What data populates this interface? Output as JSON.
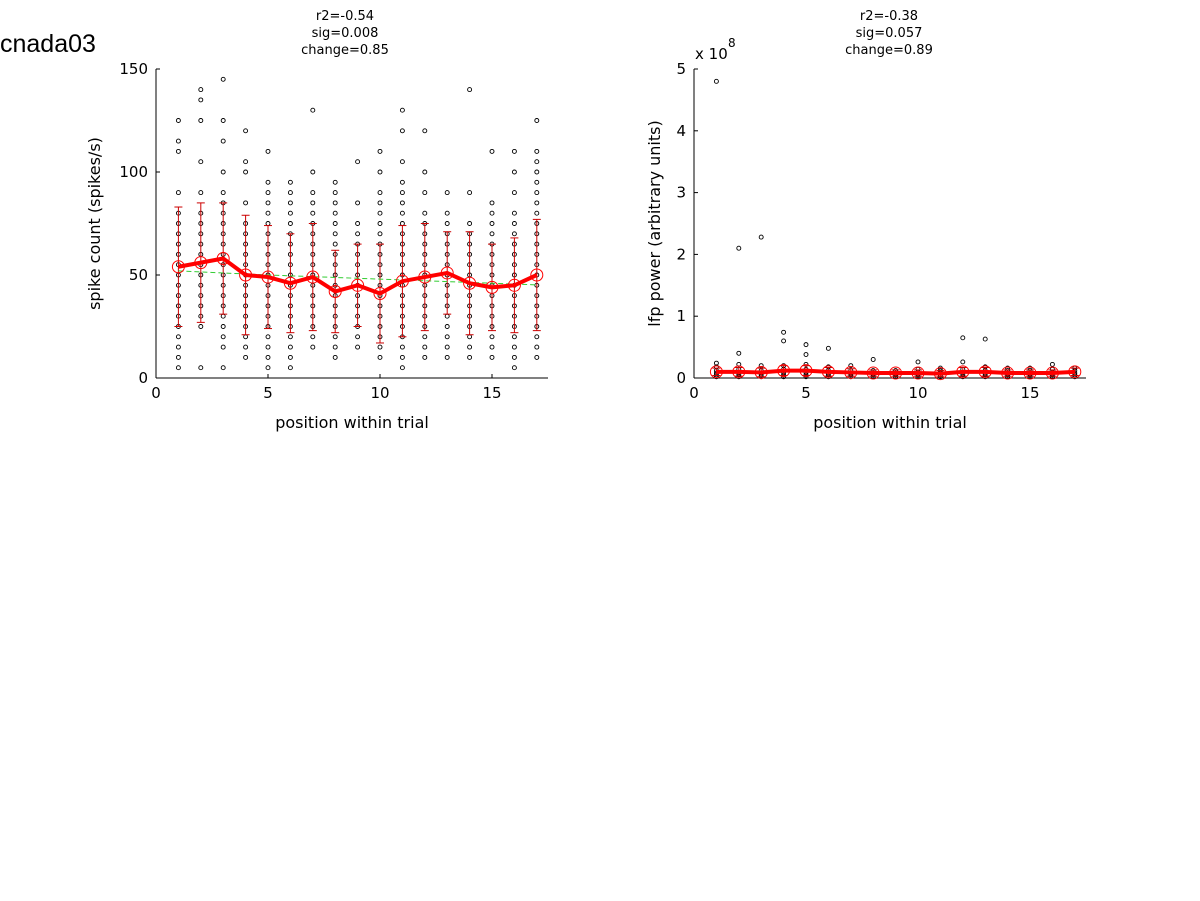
{
  "figure": {
    "label": "cnada03"
  },
  "chart_data": [
    {
      "type": "scatter",
      "title": [
        "r2=-0.54",
        "sig=0.008",
        "change=0.85"
      ],
      "xlabel": "position within trial",
      "ylabel": "spike count (spikes/s)",
      "xlim": [
        0,
        17.5
      ],
      "ylim": [
        0,
        150
      ],
      "xticks": [
        "0",
        "5",
        "10",
        "15"
      ],
      "yticks": [
        "0",
        "50",
        "100",
        "150"
      ],
      "x_positions": [
        1,
        2,
        3,
        4,
        5,
        6,
        7,
        8,
        9,
        10,
        11,
        12,
        13,
        14,
        15,
        16,
        17
      ],
      "points": [
        [
          5,
          10,
          15,
          20,
          25,
          30,
          35,
          40,
          45,
          50,
          55,
          60,
          65,
          70,
          75,
          80,
          90,
          110,
          115,
          125
        ],
        [
          5,
          25,
          30,
          35,
          40,
          45,
          50,
          55,
          60,
          65,
          70,
          75,
          80,
          90,
          105,
          125,
          135,
          140
        ],
        [
          5,
          15,
          20,
          25,
          30,
          35,
          40,
          45,
          50,
          55,
          60,
          65,
          70,
          75,
          80,
          85,
          90,
          100,
          115,
          125,
          145
        ],
        [
          10,
          15,
          20,
          25,
          30,
          35,
          40,
          45,
          50,
          55,
          60,
          65,
          70,
          75,
          85,
          100,
          105,
          120
        ],
        [
          5,
          10,
          15,
          20,
          25,
          30,
          35,
          40,
          45,
          50,
          55,
          60,
          65,
          70,
          75,
          80,
          85,
          90,
          95,
          110
        ],
        [
          5,
          10,
          15,
          20,
          25,
          30,
          35,
          40,
          45,
          50,
          55,
          60,
          65,
          70,
          75,
          80,
          85,
          90,
          95
        ],
        [
          15,
          20,
          25,
          30,
          35,
          40,
          45,
          50,
          55,
          60,
          65,
          70,
          75,
          80,
          85,
          90,
          100,
          130
        ],
        [
          10,
          15,
          20,
          25,
          30,
          35,
          40,
          45,
          50,
          55,
          60,
          65,
          70,
          75,
          80,
          85,
          90,
          95
        ],
        [
          15,
          20,
          25,
          30,
          35,
          40,
          45,
          50,
          55,
          60,
          65,
          70,
          75,
          85,
          105
        ],
        [
          10,
          15,
          20,
          25,
          30,
          35,
          40,
          45,
          50,
          55,
          60,
          65,
          70,
          75,
          80,
          85,
          90,
          100,
          110
        ],
        [
          5,
          10,
          15,
          20,
          25,
          30,
          35,
          40,
          45,
          50,
          55,
          60,
          65,
          70,
          75,
          80,
          85,
          90,
          95,
          105,
          120,
          130
        ],
        [
          10,
          15,
          20,
          25,
          30,
          35,
          40,
          45,
          50,
          55,
          60,
          65,
          70,
          75,
          80,
          90,
          100,
          120
        ],
        [
          10,
          15,
          20,
          25,
          30,
          35,
          40,
          45,
          50,
          55,
          60,
          65,
          70,
          75,
          80,
          90
        ],
        [
          10,
          15,
          20,
          25,
          30,
          35,
          40,
          45,
          50,
          55,
          60,
          65,
          70,
          75,
          90,
          140
        ],
        [
          10,
          15,
          20,
          25,
          30,
          35,
          40,
          45,
          50,
          55,
          60,
          65,
          70,
          75,
          80,
          85,
          110
        ],
        [
          5,
          10,
          15,
          20,
          25,
          30,
          35,
          40,
          45,
          50,
          55,
          60,
          65,
          70,
          75,
          80,
          90,
          100,
          110
        ],
        [
          10,
          15,
          20,
          25,
          30,
          35,
          40,
          45,
          50,
          55,
          60,
          65,
          70,
          75,
          80,
          85,
          90,
          95,
          100,
          105,
          110,
          125
        ]
      ],
      "means": [
        54,
        56,
        58,
        50,
        49,
        46,
        49,
        42,
        45,
        41,
        47,
        49,
        51,
        46,
        44,
        45,
        50
      ],
      "errors": [
        29,
        29,
        27,
        29,
        25,
        24,
        26,
        20,
        20,
        24,
        27,
        26,
        20,
        25,
        21,
        23,
        27
      ],
      "trend": [
        52,
        51.5,
        51,
        50.5,
        50,
        49.6,
        49.2,
        48.8,
        48.4,
        48,
        47.6,
        47.2,
        46.8,
        46.4,
        46,
        45.6,
        45.2
      ],
      "colors": {
        "mean": "#ff0000",
        "errorbar": "#cc0000",
        "trend": "#33cc33",
        "points": "#000000"
      }
    },
    {
      "type": "scatter",
      "title": [
        "r2=-0.38",
        "sig=0.057",
        "change=0.89"
      ],
      "xlabel": "position within trial",
      "ylabel": "lfp power (arbitrary units)",
      "multiplier_label": "x 10",
      "multiplier_exponent": "8",
      "xlim": [
        0,
        17.5
      ],
      "ylim": [
        0,
        5
      ],
      "xticks": [
        "0",
        "5",
        "10",
        "15"
      ],
      "yticks": [
        "0",
        "1",
        "2",
        "3",
        "4",
        "5"
      ],
      "x_positions": [
        1,
        2,
        3,
        4,
        5,
        6,
        7,
        8,
        9,
        10,
        11,
        12,
        13,
        14,
        15,
        16,
        17
      ],
      "points": [
        [
          0.02,
          0.05,
          0.08,
          0.12,
          0.18,
          0.24,
          4.8
        ],
        [
          0.02,
          0.05,
          0.09,
          0.14,
          0.22,
          0.4,
          2.1
        ],
        [
          0.02,
          0.05,
          0.08,
          0.12,
          0.2,
          2.28
        ],
        [
          0.02,
          0.05,
          0.09,
          0.14,
          0.2,
          0.6,
          0.74
        ],
        [
          0.02,
          0.05,
          0.09,
          0.14,
          0.22,
          0.38,
          0.54
        ],
        [
          0.02,
          0.05,
          0.08,
          0.12,
          0.18,
          0.48
        ],
        [
          0.02,
          0.05,
          0.08,
          0.12,
          0.2
        ],
        [
          0.02,
          0.05,
          0.08,
          0.12,
          0.3
        ],
        [
          0.02,
          0.05,
          0.08,
          0.12
        ],
        [
          0.02,
          0.05,
          0.08,
          0.14,
          0.26
        ],
        [
          0.02,
          0.05,
          0.08,
          0.12,
          0.16
        ],
        [
          0.02,
          0.05,
          0.09,
          0.14,
          0.26,
          0.65
        ],
        [
          0.02,
          0.05,
          0.08,
          0.12,
          0.18,
          0.63
        ],
        [
          0.02,
          0.05,
          0.08,
          0.12,
          0.16
        ],
        [
          0.02,
          0.05,
          0.08,
          0.12,
          0.16
        ],
        [
          0.02,
          0.05,
          0.08,
          0.14,
          0.22
        ],
        [
          0.02,
          0.05,
          0.08,
          0.12,
          0.16
        ]
      ],
      "means": [
        0.1,
        0.1,
        0.09,
        0.12,
        0.12,
        0.1,
        0.09,
        0.08,
        0.08,
        0.08,
        0.07,
        0.1,
        0.1,
        0.08,
        0.08,
        0.08,
        0.1
      ],
      "errors": [
        0.06,
        0.07,
        0.07,
        0.08,
        0.08,
        0.07,
        0.06,
        0.05,
        0.05,
        0.05,
        0.05,
        0.07,
        0.07,
        0.05,
        0.05,
        0.05,
        0.06
      ],
      "trend": [
        0.11,
        0.108,
        0.106,
        0.104,
        0.102,
        0.1,
        0.098,
        0.096,
        0.094,
        0.092,
        0.09,
        0.088,
        0.086,
        0.084,
        0.082,
        0.08,
        0.078
      ],
      "colors": {
        "mean": "#ff0000",
        "errorbar": "#cc0000",
        "trend": "#33cc33",
        "points": "#000000"
      }
    }
  ]
}
